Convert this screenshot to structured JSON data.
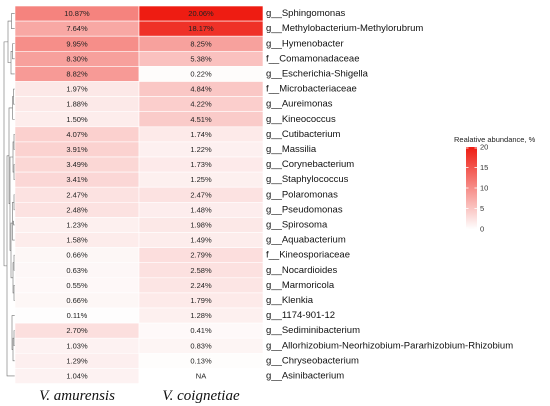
{
  "chart_data": {
    "type": "heatmap",
    "columns": [
      "V. amurensis",
      "V. coignetiae"
    ],
    "rows": [
      "g__Sphingomonas",
      "g__Methylobacterium-Methylorubrum",
      "g__Hymenobacter",
      "f__Comamonadaceae",
      "g__Escherichia-Shigella",
      "f__Microbacteriaceae",
      "g__Aureimonas",
      "g__Kineococcus",
      "g__Cutibacterium",
      "g__Massilia",
      "g__Corynebacterium",
      "g__Staphylococcus",
      "g__Polaromonas",
      "g__Pseudomonas",
      "g__Spirosoma",
      "g__Aquabacterium",
      "f__Kineosporiaceae",
      "g__Nocardioides",
      "g__Marmoricola",
      "g__Klenkia",
      "g__1174-901-12",
      "g__Sediminibacterium",
      "g__Allorhizobium-Neorhizobium-Pararhizobium-Rhizobium",
      "g__Chryseobacterium",
      "g__Asinibacterium"
    ],
    "values": [
      [
        10.87,
        20.06
      ],
      [
        7.64,
        18.17
      ],
      [
        9.95,
        8.25
      ],
      [
        8.3,
        5.38
      ],
      [
        8.82,
        0.22
      ],
      [
        1.97,
        4.84
      ],
      [
        1.88,
        4.22
      ],
      [
        1.5,
        4.51
      ],
      [
        4.07,
        1.74
      ],
      [
        3.91,
        1.22
      ],
      [
        3.49,
        1.73
      ],
      [
        3.41,
        1.25
      ],
      [
        2.47,
        2.47
      ],
      [
        2.48,
        1.48
      ],
      [
        1.23,
        1.98
      ],
      [
        1.58,
        1.49
      ],
      [
        0.66,
        2.79
      ],
      [
        0.63,
        2.58
      ],
      [
        0.55,
        2.24
      ],
      [
        0.66,
        1.79
      ],
      [
        0.11,
        1.28
      ],
      [
        2.7,
        0.41
      ],
      [
        1.03,
        0.83
      ],
      [
        1.29,
        0.13
      ],
      [
        1.04,
        null
      ]
    ],
    "labels": [
      [
        "10.87%",
        "20.06%"
      ],
      [
        "7.64%",
        "18.17%"
      ],
      [
        "9.95%",
        "8.25%"
      ],
      [
        "8.30%",
        "5.38%"
      ],
      [
        "8.82%",
        "0.22%"
      ],
      [
        "1.97%",
        "4.84%"
      ],
      [
        "1.88%",
        "4.22%"
      ],
      [
        "1.50%",
        "4.51%"
      ],
      [
        "4.07%",
        "1.74%"
      ],
      [
        "3.91%",
        "1.22%"
      ],
      [
        "3.49%",
        "1.73%"
      ],
      [
        "3.41%",
        "1.25%"
      ],
      [
        "2.47%",
        "2.47%"
      ],
      [
        "2.48%",
        "1.48%"
      ],
      [
        "1.23%",
        "1.98%"
      ],
      [
        "1.58%",
        "1.49%"
      ],
      [
        "0.66%",
        "2.79%"
      ],
      [
        "0.63%",
        "2.58%"
      ],
      [
        "0.55%",
        "2.24%"
      ],
      [
        "0.66%",
        "1.79%"
      ],
      [
        "0.11%",
        "1.28%"
      ],
      [
        "2.70%",
        "0.41%"
      ],
      [
        "1.03%",
        "0.83%"
      ],
      [
        "1.29%",
        "0.13%"
      ],
      [
        "1.04%",
        "NA"
      ]
    ],
    "color_scale": {
      "min": 0,
      "max": 20,
      "low_color": "#fefefe",
      "high_color": "#ee1c12",
      "na_color": "#ffffff"
    },
    "legend": {
      "title": "Realative abundance, %",
      "ticks": [
        0,
        5,
        10,
        15,
        20
      ],
      "placement": "right"
    },
    "dendrogram": "rows",
    "grid": false
  }
}
